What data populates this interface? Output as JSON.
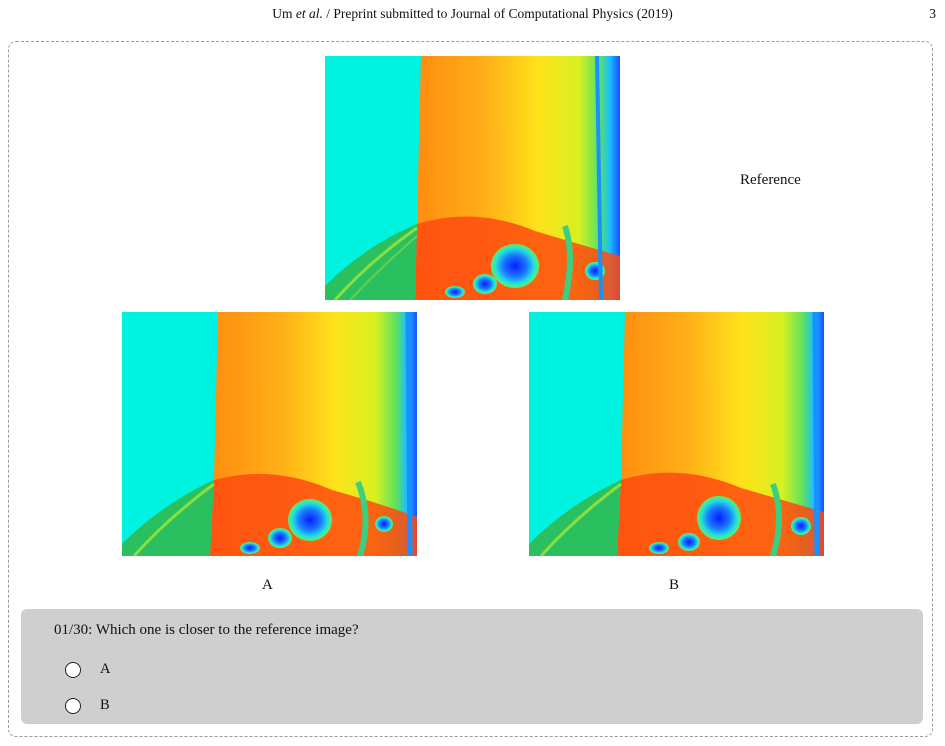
{
  "header": {
    "authors_prefix": "Um ",
    "authors_italic": "et al.",
    "journal": "/ Preprint submitted to Journal of Computational Physics (2019)",
    "page_number": "3"
  },
  "images": {
    "reference_label": "Reference",
    "a_label": "A",
    "b_label": "B"
  },
  "quiz": {
    "question": "01/30: Which one is closer to the reference image?",
    "options": [
      "A",
      "B"
    ]
  }
}
